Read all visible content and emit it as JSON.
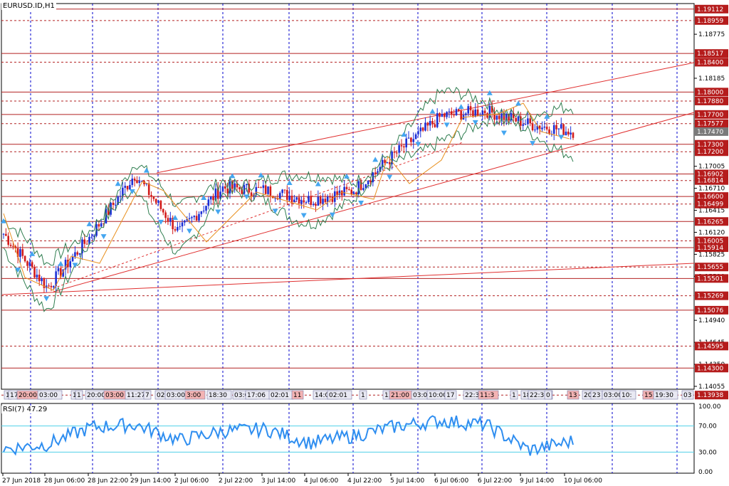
{
  "window": {
    "symbol_title": "EURUSD.ID,H1",
    "rsi_title": "RSI(7) 47.29"
  },
  "colors": {
    "background": "#ffffff",
    "grid": "#0000cc",
    "level_line": "#b22222",
    "trend_line": "#e03030",
    "bull_candle": "#1c2fd6",
    "bear_candle": "#d21b1b",
    "bollinger": "#2e7d4f",
    "rsi_line": "#2f8ef0",
    "rsi_levels": "#4fd0e8",
    "arrow": "#44a6f0",
    "price_tag": "#b51c1c",
    "current_tag": "#7a7a7a"
  },
  "price_axis": {
    "ticks": [
      "1.18775",
      "1.18185",
      "1.17005",
      "1.16710",
      "1.16415",
      "1.16120",
      "1.15825",
      "1.15530",
      "1.14940",
      "1.14645",
      "1.14350",
      "1.14055"
    ],
    "level_tags": [
      "1.19112",
      "1.18959",
      "1.18517",
      "1.18400",
      "1.18000",
      "1.17880",
      "1.17700",
      "1.17577",
      "1.17300",
      "1.17200",
      "1.16902",
      "1.16814",
      "1.16600",
      "1.16499",
      "1.16265",
      "1.16005",
      "1.15914",
      "1.15655",
      "1.15501",
      "1.15269",
      "1.15076",
      "1.14595",
      "1.14300",
      "1.13938"
    ],
    "current_price": "1.17470"
  },
  "time_axis": {
    "labels": [
      "27 Jun 2018",
      "28 Jun 06:00",
      "28 Jun 22:00",
      "29 Jun 14:00",
      "2 Jul 06:00",
      "2 Jul 22:00",
      "3 Jul 14:00",
      "4 Jul 06:00",
      "4 Jul 22:00",
      "5 Jul 14:00",
      "6 Jul 06:00",
      "6 Jul 22:00",
      "9 Jul 14:00",
      "10 Jul 06:00"
    ]
  },
  "rsi_axis": {
    "ticks": [
      "100.00",
      "70.00",
      "30.00",
      "0.00"
    ]
  },
  "event_tags": [
    "1",
    "17",
    "20:00",
    "03:00",
    "15",
    "1",
    "20:00",
    "03:00",
    "11:27",
    "7",
    "02:",
    "03:00",
    "3:00",
    "18:30",
    "03:00",
    "17:06",
    "02:01",
    "11",
    "14:00",
    "02:01",
    "1",
    "13:00",
    "21:00",
    "03:00",
    "10:00",
    "17",
    "22:30",
    "11:3",
    "1",
    "18:",
    "22:30",
    "0",
    "13",
    "20",
    "23",
    "03:00",
    "10:",
    "15:0",
    "19:30",
    "03"
  ],
  "chart_data": {
    "type": "line",
    "title": "EURUSD.ID,H1",
    "x": [
      "27 Jun 2018",
      "28 Jun 06:00",
      "28 Jun 22:00",
      "29 Jun 14:00",
      "2 Jul 06:00",
      "2 Jul 22:00",
      "3 Jul 14:00",
      "4 Jul 06:00",
      "4 Jul 22:00",
      "5 Jul 14:00",
      "6 Jul 06:00",
      "6 Jul 22:00",
      "9 Jul 14:00",
      "10 Jul 06:00"
    ],
    "series": [
      {
        "values": [
          1.161,
          1.1538,
          1.1608,
          1.169,
          1.1612,
          1.1672,
          1.1668,
          1.1655,
          1.1668,
          1.172,
          1.1768,
          1.1775,
          1.1757,
          1.1747
        ]
      }
    ],
    "rsi": [
      35,
      42,
      68,
      72,
      48,
      62,
      65,
      44,
      55,
      70,
      78,
      72,
      33,
      47
    ],
    "ylim": [
      1.1394,
      1.1911
    ],
    "rsi_ylim": [
      0,
      100
    ]
  }
}
